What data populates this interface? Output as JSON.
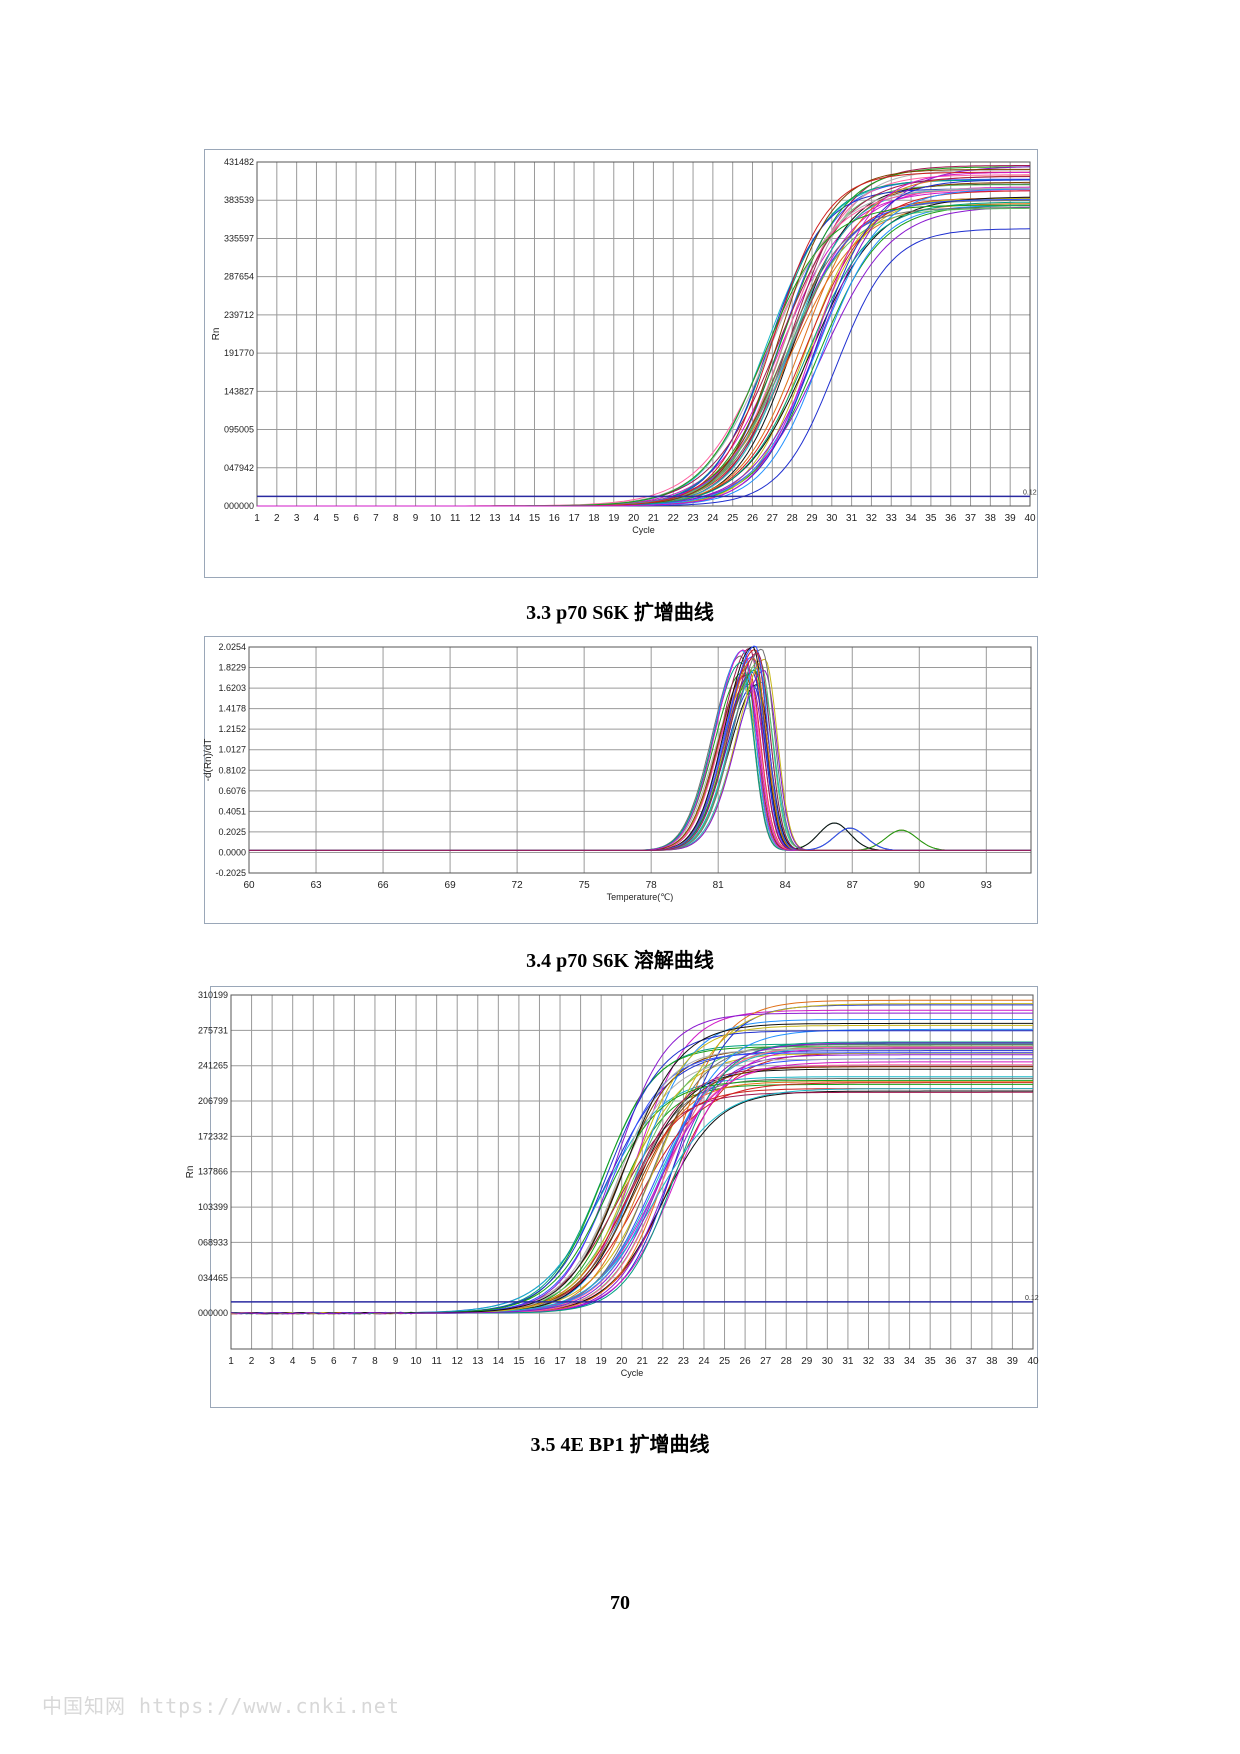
{
  "captions": {
    "fig1": "3.3 p70 S6K 扩增曲线",
    "fig2": "3.4 p70 S6K 溶解曲线",
    "fig3": "3.5 4E BP1 扩增曲线"
  },
  "page_number": "70",
  "watermark": "中国知网  https://www.cnki.net",
  "colors": {
    "grid": "#9a9a9a",
    "threshold": "#2a2aa0",
    "palette": [
      "#1f2fd0",
      "#d01f1f",
      "#18a018",
      "#d018c8",
      "#18b8c8",
      "#c8b818",
      "#101010",
      "#8a18d0",
      "#e07018",
      "#707070",
      "#3050ff",
      "#a01850",
      "#60c060",
      "#ff60a0",
      "#2090ff",
      "#b0b0b0",
      "#804000",
      "#00a080"
    ]
  },
  "chart_data": [
    {
      "type": "line",
      "title": "",
      "xlabel": "Cycle",
      "ylabel": "Rn",
      "x_ticks": [
        "1",
        "2",
        "3",
        "4",
        "5",
        "6",
        "7",
        "8",
        "9",
        "10",
        "11",
        "12",
        "13",
        "14",
        "15",
        "16",
        "17",
        "18",
        "19",
        "20",
        "21",
        "22",
        "23",
        "24",
        "25",
        "26",
        "27",
        "28",
        "29",
        "30",
        "31",
        "32",
        "33",
        "34",
        "35",
        "36",
        "37",
        "38",
        "39",
        "40"
      ],
      "y_ticks": [
        "000000",
        "047942",
        "095005",
        "143827",
        "191770",
        "239712",
        "287654",
        "335597",
        "383539",
        "431482"
      ],
      "xlim": [
        1,
        40
      ],
      "ylim": [
        0,
        431482
      ],
      "threshold": {
        "value": 12000,
        "label": "0.12"
      },
      "grid": true,
      "series_summary": {
        "count": 40,
        "baseline": 0,
        "plateau_range": [
          348000,
          428000
        ],
        "midpoint_cycle_range": [
          26.5,
          30.2
        ],
        "outlier_low_plateau": 348000
      }
    },
    {
      "type": "line",
      "title": "",
      "xlabel": "Temperature(℃)",
      "ylabel": "-d(Rn)/dT",
      "x_ticks": [
        "60",
        "63",
        "66",
        "69",
        "72",
        "75",
        "78",
        "81",
        "84",
        "87",
        "90",
        "93"
      ],
      "y_ticks": [
        "-0.2025",
        "0.0000",
        "0.2025",
        "0.4051",
        "0.6076",
        "0.8102",
        "1.0127",
        "1.2152",
        "1.4178",
        "1.6203",
        "1.8229",
        "2.0254"
      ],
      "xlim": [
        60,
        95
      ],
      "ylim": [
        -0.2025,
        2.0254
      ],
      "grid": true,
      "series_summary": {
        "count": 30,
        "peak_temp_range": [
          82.0,
          83.2
        ],
        "peak_height_range": [
          1.6,
          2.02
        ],
        "secondary_peaks": [
          {
            "x": 86.2,
            "y": 0.27
          },
          {
            "x": 86.9,
            "y": 0.22
          },
          {
            "x": 89.2,
            "y": 0.2
          }
        ]
      }
    },
    {
      "type": "line",
      "title": "",
      "xlabel": "Cycle",
      "ylabel": "Rn",
      "x_ticks": [
        "1",
        "2",
        "3",
        "4",
        "5",
        "6",
        "7",
        "8",
        "9",
        "10",
        "11",
        "12",
        "13",
        "14",
        "15",
        "16",
        "17",
        "18",
        "19",
        "20",
        "21",
        "22",
        "23",
        "24",
        "25",
        "26",
        "27",
        "28",
        "29",
        "30",
        "31",
        "32",
        "33",
        "34",
        "35",
        "36",
        "37",
        "38",
        "39",
        "40"
      ],
      "y_ticks": [
        "000000",
        "034465",
        "068933",
        "103399",
        "137866",
        "172332",
        "206799",
        "241265",
        "275731",
        "310199"
      ],
      "xlim": [
        1,
        40
      ],
      "ylim": [
        -35000,
        310199
      ],
      "threshold": {
        "value": 11000,
        "label": "0.12"
      },
      "grid": true,
      "series_summary": {
        "count": 44,
        "baseline": 0,
        "plateau_range": [
          215000,
          308000
        ],
        "midpoint_cycle_range": [
          19.0,
          22.8
        ]
      }
    }
  ]
}
